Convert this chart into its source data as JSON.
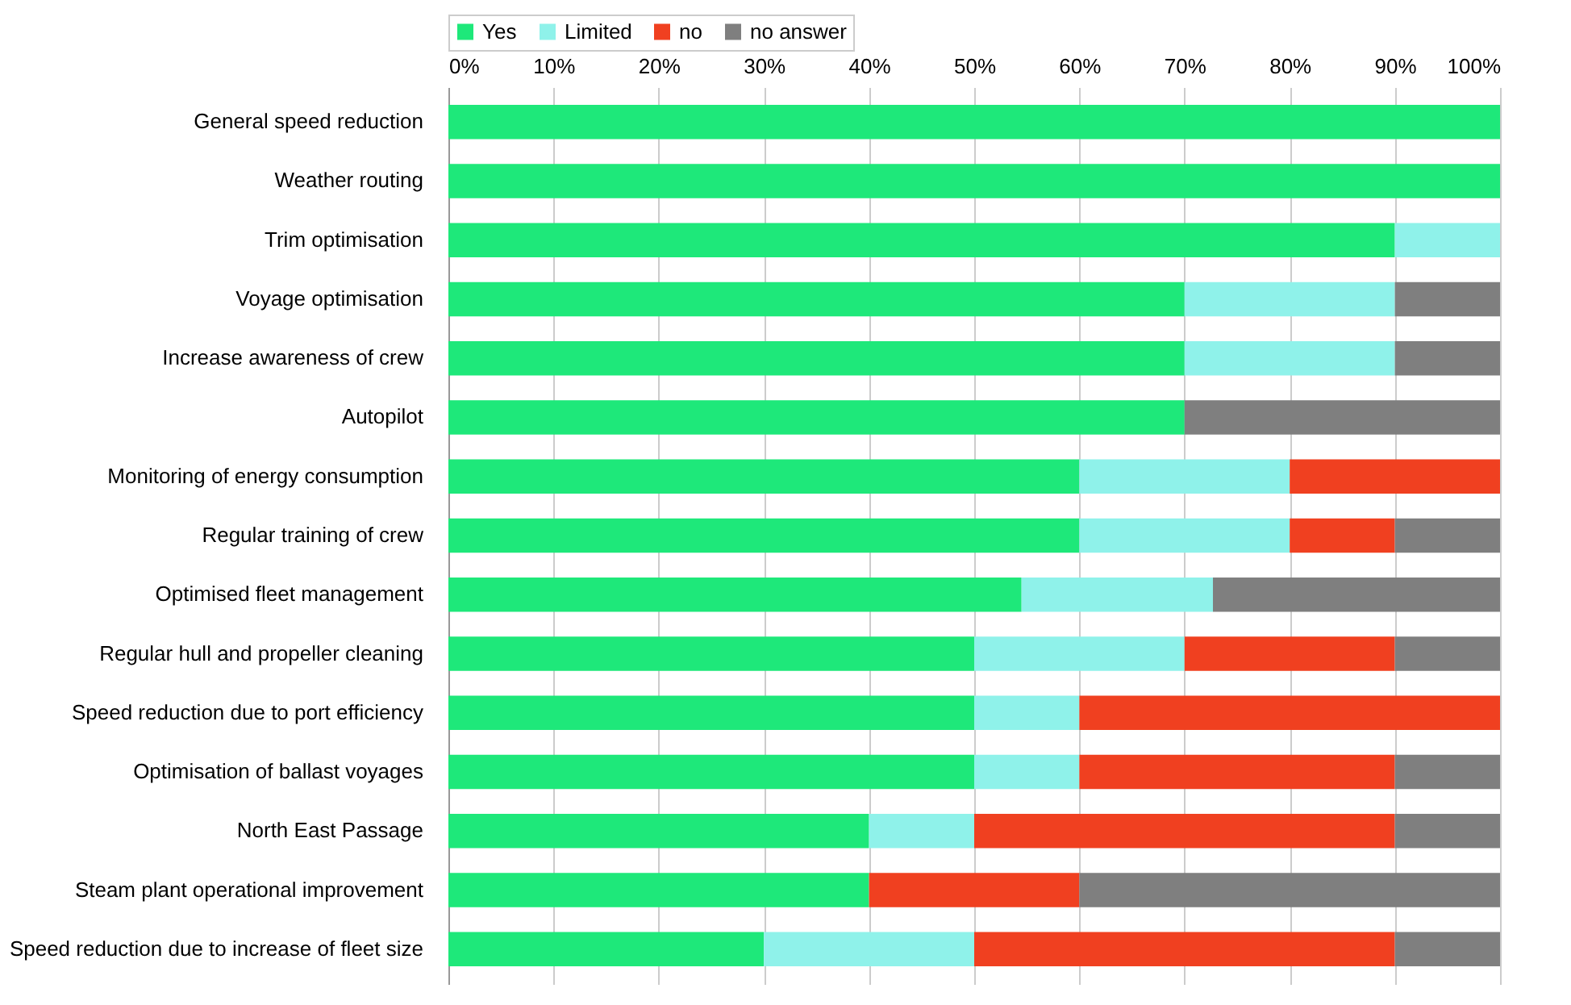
{
  "chart_data": {
    "type": "bar",
    "orientation": "horizontal",
    "stacked": true,
    "legend": "top",
    "grid": "x",
    "categories": [
      "General speed reduction",
      "Weather routing",
      "Trim optimisation",
      "Voyage optimisation",
      "Increase awareness of crew",
      "Autopilot",
      "Monitoring of energy consumption",
      "Regular training of crew",
      "Optimised fleet management",
      "Regular hull and propeller cleaning",
      "Speed reduction due to port efficiency",
      "Optimisation of ballast voyages",
      "North East Passage",
      "Steam plant operational improvement",
      "Speed reduction due to increase of fleet size"
    ],
    "xlim": [
      0,
      100
    ],
    "xticks": [
      {
        "value": 0,
        "label": "0%"
      },
      {
        "value": 10,
        "label": "10%"
      },
      {
        "value": 20,
        "label": "20%"
      },
      {
        "value": 30,
        "label": "30%"
      },
      {
        "value": 40,
        "label": "40%"
      },
      {
        "value": 50,
        "label": "50%"
      },
      {
        "value": 60,
        "label": "60%"
      },
      {
        "value": 70,
        "label": "70%"
      },
      {
        "value": 80,
        "label": "80%"
      },
      {
        "value": 90,
        "label": "90%"
      },
      {
        "value": 100,
        "label": "100%"
      }
    ],
    "series": [
      {
        "name": "Yes",
        "color": "#1ee87a",
        "values": [
          100,
          100,
          90,
          70,
          70,
          70,
          60,
          60,
          54.5,
          50,
          50,
          50,
          40,
          40,
          30
        ]
      },
      {
        "name": "Limited",
        "color": "#8ff2ea",
        "values": [
          0,
          0,
          10,
          20,
          20,
          0,
          20,
          20,
          18.2,
          20,
          10,
          10,
          10,
          0,
          20
        ]
      },
      {
        "name": "no",
        "color": "#f04020",
        "values": [
          0,
          0,
          0,
          0,
          0,
          0,
          20,
          10,
          0,
          20,
          40,
          30,
          40,
          20,
          40
        ]
      },
      {
        "name": "no answer",
        "color": "#7f7f7f",
        "values": [
          0,
          0,
          0,
          10,
          10,
          30,
          0,
          10,
          27.3,
          10,
          0,
          10,
          10,
          40,
          10
        ]
      }
    ]
  }
}
